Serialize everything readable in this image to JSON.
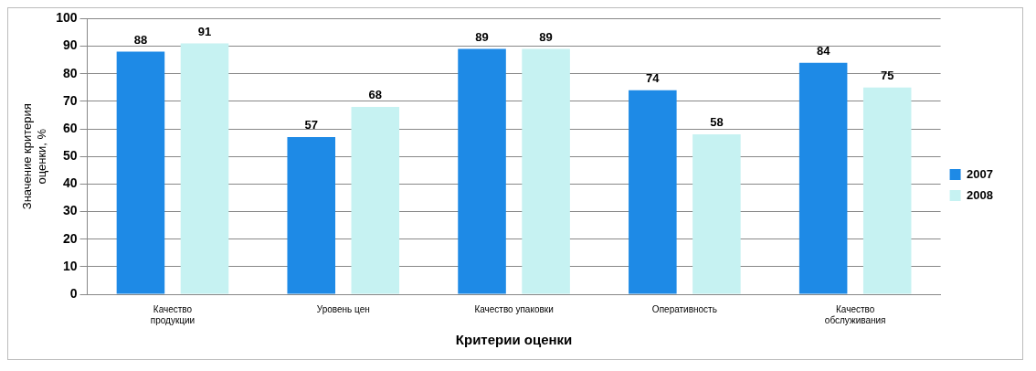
{
  "chart_data": {
    "type": "bar",
    "categories": [
      "Качество\nпродукции",
      "Уровень цен",
      "Качество упаковки",
      "Оперативность",
      "Качество\nобслуживания"
    ],
    "series": [
      {
        "name": "2007",
        "color": "#1e8ae6",
        "values": [
          88,
          57,
          89,
          74,
          84
        ]
      },
      {
        "name": "2008",
        "color": "#c6f2f2",
        "values": [
          91,
          68,
          89,
          58,
          75
        ]
      }
    ],
    "xlabel": "Критерии оценки",
    "ylabel": "Значение критерия\nоценки, %",
    "ylim": [
      0,
      100
    ],
    "yticks": [
      0,
      10,
      20,
      30,
      40,
      50,
      60,
      70,
      80,
      90,
      100
    ],
    "grid": "y",
    "legend": "right",
    "data_labels": true
  }
}
